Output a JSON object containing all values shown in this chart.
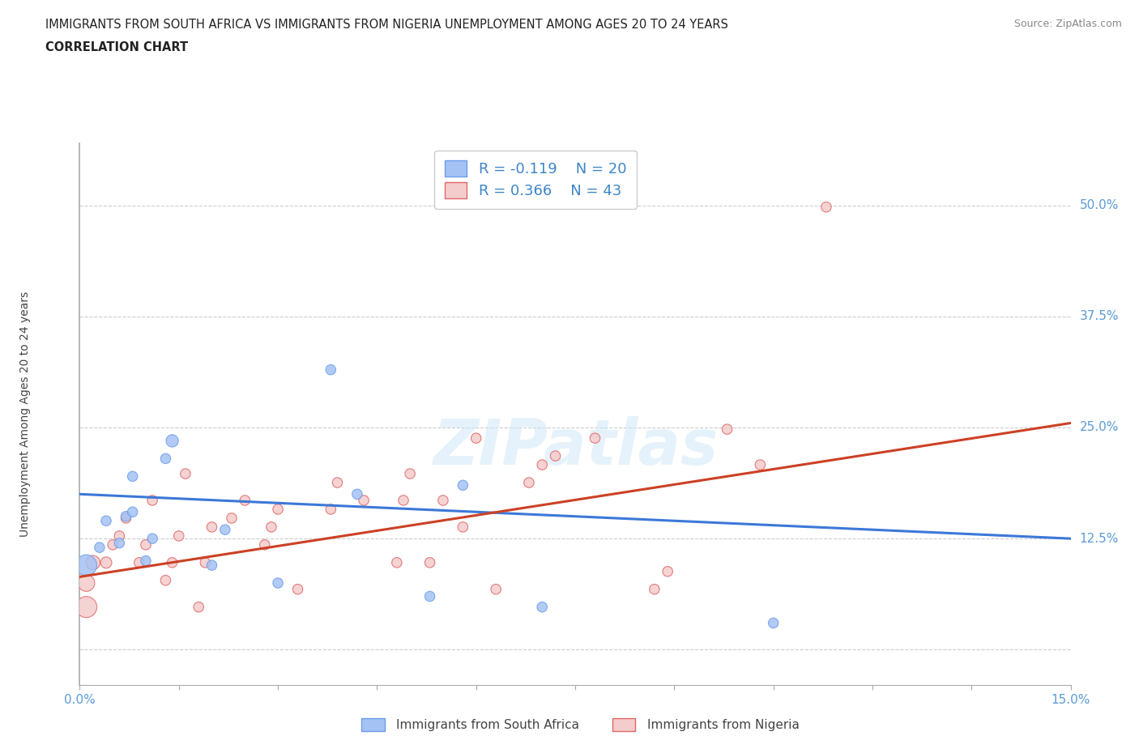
{
  "title_line1": "IMMIGRANTS FROM SOUTH AFRICA VS IMMIGRANTS FROM NIGERIA UNEMPLOYMENT AMONG AGES 20 TO 24 YEARS",
  "title_line2": "CORRELATION CHART",
  "source_text": "Source: ZipAtlas.com",
  "ylabel": "Unemployment Among Ages 20 to 24 years",
  "xlim": [
    0.0,
    0.15
  ],
  "ylim": [
    -0.04,
    0.57
  ],
  "yticks": [
    0.0,
    0.125,
    0.25,
    0.375,
    0.5
  ],
  "ytick_labels": [
    "",
    "12.5%",
    "25.0%",
    "37.5%",
    "50.0%"
  ],
  "xticks": [
    0.0,
    0.015,
    0.03,
    0.045,
    0.06,
    0.075,
    0.09,
    0.105,
    0.12,
    0.135,
    0.15
  ],
  "xtick_labels": [
    "0.0%",
    "",
    "",
    "",
    "",
    "",
    "",
    "",
    "",
    "",
    "15.0%"
  ],
  "south_africa_color": "#a4c2f4",
  "nigeria_color": "#f4cccc",
  "south_africa_edge_color": "#6d9eeb",
  "nigeria_edge_color": "#e06666",
  "south_africa_line_color": "#3c78d8",
  "nigeria_line_color": "#cc4125",
  "r_south_africa": -0.119,
  "n_south_africa": 20,
  "r_nigeria": 0.366,
  "n_nigeria": 43,
  "legend_label_sa": "Immigrants from South Africa",
  "legend_label_ng": "Immigrants from Nigeria",
  "watermark": "ZIPatlas",
  "south_africa_x": [
    0.001,
    0.003,
    0.004,
    0.006,
    0.007,
    0.008,
    0.008,
    0.01,
    0.011,
    0.013,
    0.014,
    0.02,
    0.022,
    0.03,
    0.038,
    0.042,
    0.053,
    0.058,
    0.07,
    0.105
  ],
  "south_africa_y": [
    0.095,
    0.115,
    0.145,
    0.12,
    0.15,
    0.155,
    0.195,
    0.1,
    0.125,
    0.215,
    0.235,
    0.095,
    0.135,
    0.075,
    0.315,
    0.175,
    0.06,
    0.185,
    0.048,
    0.03
  ],
  "south_africa_size": [
    350,
    80,
    80,
    80,
    80,
    80,
    80,
    80,
    80,
    80,
    120,
    80,
    80,
    80,
    80,
    80,
    80,
    80,
    80,
    80
  ],
  "nigeria_x": [
    0.001,
    0.001,
    0.002,
    0.004,
    0.005,
    0.006,
    0.007,
    0.009,
    0.01,
    0.011,
    0.013,
    0.014,
    0.015,
    0.016,
    0.018,
    0.019,
    0.02,
    0.023,
    0.025,
    0.028,
    0.029,
    0.03,
    0.033,
    0.038,
    0.039,
    0.043,
    0.048,
    0.049,
    0.05,
    0.053,
    0.055,
    0.058,
    0.06,
    0.063,
    0.068,
    0.07,
    0.072,
    0.078,
    0.087,
    0.089,
    0.098,
    0.103,
    0.113
  ],
  "nigeria_y": [
    0.048,
    0.075,
    0.098,
    0.098,
    0.118,
    0.128,
    0.148,
    0.098,
    0.118,
    0.168,
    0.078,
    0.098,
    0.128,
    0.198,
    0.048,
    0.098,
    0.138,
    0.148,
    0.168,
    0.118,
    0.138,
    0.158,
    0.068,
    0.158,
    0.188,
    0.168,
    0.098,
    0.168,
    0.198,
    0.098,
    0.168,
    0.138,
    0.238,
    0.068,
    0.188,
    0.208,
    0.218,
    0.238,
    0.068,
    0.088,
    0.248,
    0.208,
    0.498
  ],
  "nigeria_size": [
    350,
    220,
    160,
    100,
    80,
    80,
    80,
    80,
    80,
    80,
    80,
    80,
    80,
    80,
    80,
    80,
    80,
    80,
    80,
    80,
    80,
    80,
    80,
    80,
    80,
    80,
    80,
    80,
    80,
    80,
    80,
    80,
    80,
    80,
    80,
    80,
    80,
    80,
    80,
    80,
    80,
    80,
    80
  ],
  "sa_line_x0": 0.0,
  "sa_line_y0": 0.175,
  "sa_line_x1": 0.15,
  "sa_line_y1": 0.125,
  "ng_line_x0": 0.0,
  "ng_line_y0": 0.082,
  "ng_line_x1": 0.15,
  "ng_line_y1": 0.255,
  "grid_color": "#cccccc",
  "axis_color": "#aaaaaa",
  "tick_color": "#5b9bd5",
  "label_color": "#444444",
  "title_color": "#222222",
  "source_color": "#888888",
  "background_color": "#ffffff",
  "legend_text_color": "#3d85c8"
}
